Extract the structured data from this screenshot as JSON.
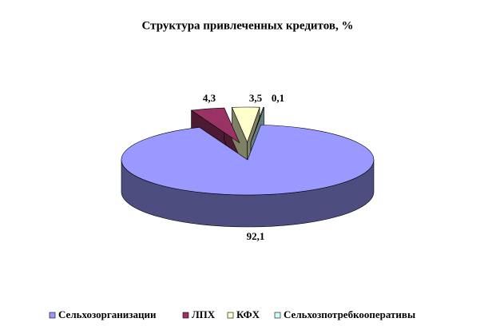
{
  "chart_data": {
    "type": "pie3d",
    "title": "Структура привлеченных кредитов, %",
    "categories": [
      "Сельхозорганизации",
      "ЛПХ",
      "КФХ",
      "Сельхозпотребкооперативы"
    ],
    "values": [
      92.1,
      4.3,
      3.5,
      0.1
    ],
    "value_labels": [
      "92,1",
      "4,3",
      "3,5",
      "0,1"
    ],
    "colors": [
      "#9999ff",
      "#993366",
      "#ffffcc",
      "#ccffff"
    ],
    "legend": "bottom"
  }
}
